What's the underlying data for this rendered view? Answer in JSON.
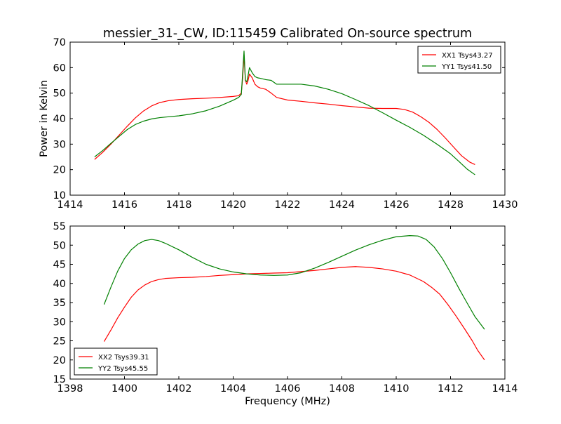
{
  "figure": {
    "title": "messier_31-_CW, ID:115459 Calibrated On-source spectrum",
    "ylabel": "Power in Kelvin",
    "xlabel": "Frequency (MHz)"
  },
  "chart_data": [
    {
      "type": "line",
      "xlim": [
        1414,
        1430
      ],
      "ylim": [
        10,
        70
      ],
      "xticks": [
        1414,
        1416,
        1418,
        1420,
        1422,
        1424,
        1426,
        1428,
        1430
      ],
      "yticks": [
        10,
        20,
        30,
        40,
        50,
        60,
        70
      ],
      "legend_position": "top-right",
      "series": [
        {
          "name": "XX1 Tsys43.27",
          "color": "#ff0000",
          "x": [
            1414.9,
            1415.2,
            1415.5,
            1415.8,
            1416.1,
            1416.4,
            1416.7,
            1417.0,
            1417.3,
            1417.6,
            1418.0,
            1418.5,
            1419.0,
            1419.5,
            1420.0,
            1420.2,
            1420.3,
            1420.35,
            1420.4,
            1420.45,
            1420.5,
            1420.55,
            1420.6,
            1420.7,
            1420.8,
            1420.9,
            1421.0,
            1421.2,
            1421.4,
            1421.6,
            1422.0,
            1422.5,
            1423.0,
            1423.5,
            1424.0,
            1424.5,
            1425.0,
            1425.5,
            1426.0,
            1426.3,
            1426.6,
            1426.9,
            1427.2,
            1427.5,
            1427.8,
            1428.1,
            1428.4,
            1428.7,
            1428.9
          ],
          "y": [
            24,
            26.8,
            30,
            33.5,
            37,
            40.3,
            43,
            45,
            46.3,
            47,
            47.5,
            47.8,
            48,
            48.3,
            48.7,
            49,
            50,
            56,
            65,
            55,
            53.5,
            55,
            57.5,
            56,
            53.5,
            52.5,
            52,
            51.5,
            50,
            48.3,
            47.3,
            46.8,
            46.2,
            45.7,
            45.1,
            44.6,
            44.1,
            44,
            44,
            43.6,
            42.6,
            40.8,
            38.6,
            35.8,
            32.5,
            29,
            25.5,
            23,
            22
          ]
        },
        {
          "name": "YY1 Tsys41.50",
          "color": "#008000",
          "x": [
            1414.9,
            1415.2,
            1415.5,
            1415.8,
            1416.1,
            1416.4,
            1416.7,
            1417.0,
            1417.3,
            1417.6,
            1418.0,
            1418.5,
            1419.0,
            1419.5,
            1420.0,
            1420.2,
            1420.3,
            1420.35,
            1420.4,
            1420.45,
            1420.5,
            1420.55,
            1420.6,
            1420.7,
            1420.8,
            1420.9,
            1421.0,
            1421.2,
            1421.4,
            1421.6,
            1422.0,
            1422.5,
            1423.0,
            1423.5,
            1424.0,
            1424.5,
            1425.0,
            1425.5,
            1426.0,
            1426.5,
            1427.0,
            1427.5,
            1428.0,
            1428.3,
            1428.6,
            1428.9
          ],
          "y": [
            25,
            27.5,
            30.3,
            33,
            35.7,
            37.7,
            39,
            39.9,
            40.4,
            40.7,
            41.1,
            41.9,
            43.1,
            44.9,
            47.2,
            48.3,
            49.5,
            58,
            66.5,
            55,
            54.5,
            57,
            60,
            58,
            56.5,
            56,
            55.8,
            55.3,
            55,
            53.5,
            53.5,
            53.5,
            52.8,
            51.5,
            49.8,
            47.5,
            45.1,
            42.3,
            39.4,
            36.6,
            33.5,
            30,
            26.2,
            23.3,
            20.3,
            18
          ]
        }
      ]
    },
    {
      "type": "line",
      "xlim": [
        1398,
        1414
      ],
      "ylim": [
        15,
        55
      ],
      "xticks": [
        1398,
        1400,
        1402,
        1404,
        1406,
        1408,
        1410,
        1412,
        1414
      ],
      "yticks": [
        15,
        20,
        25,
        30,
        35,
        40,
        45,
        50,
        55
      ],
      "legend_position": "bottom-left",
      "series": [
        {
          "name": "XX2 Tsys39.31",
          "color": "#ff0000",
          "x": [
            1399.25,
            1399.5,
            1399.75,
            1400.0,
            1400.25,
            1400.5,
            1400.75,
            1401.0,
            1401.25,
            1401.5,
            1402.0,
            1402.5,
            1403.0,
            1403.5,
            1404.0,
            1404.5,
            1405.0,
            1405.5,
            1406.0,
            1406.5,
            1407.0,
            1407.5,
            1408.0,
            1408.5,
            1409.0,
            1409.5,
            1410.0,
            1410.5,
            1411.0,
            1411.3,
            1411.6,
            1411.9,
            1412.2,
            1412.5,
            1412.8,
            1413.0,
            1413.25
          ],
          "y": [
            24.8,
            27.8,
            31,
            33.8,
            36.4,
            38.3,
            39.6,
            40.5,
            41,
            41.3,
            41.5,
            41.6,
            41.8,
            42.1,
            42.3,
            42.5,
            42.6,
            42.7,
            42.8,
            43.1,
            43.4,
            43.8,
            44.2,
            44.4,
            44.2,
            43.8,
            43.2,
            42.2,
            40.5,
            39,
            37.2,
            34.5,
            31.5,
            28.3,
            25,
            22.5,
            20
          ]
        },
        {
          "name": "YY2 Tsys45.55",
          "color": "#008000",
          "x": [
            1399.25,
            1399.5,
            1399.75,
            1400.0,
            1400.25,
            1400.5,
            1400.75,
            1401.0,
            1401.25,
            1401.5,
            1402.0,
            1402.5,
            1403.0,
            1403.5,
            1404.0,
            1404.5,
            1405.0,
            1405.5,
            1406.0,
            1406.5,
            1407.0,
            1407.5,
            1408.0,
            1408.5,
            1409.0,
            1409.5,
            1410.0,
            1410.5,
            1410.8,
            1411.1,
            1411.4,
            1411.7,
            1412.0,
            1412.3,
            1412.6,
            1412.9,
            1413.25
          ],
          "y": [
            34.5,
            39,
            43.2,
            46.5,
            48.8,
            50.3,
            51.2,
            51.5,
            51.2,
            50.5,
            48.8,
            46.8,
            45,
            43.8,
            43,
            42.5,
            42.2,
            42.1,
            42.2,
            42.8,
            44,
            45.5,
            47.1,
            48.7,
            50.1,
            51.3,
            52.2,
            52.5,
            52.4,
            51.5,
            49.5,
            46.5,
            42.8,
            38.8,
            35,
            31.3,
            28
          ]
        }
      ]
    }
  ]
}
